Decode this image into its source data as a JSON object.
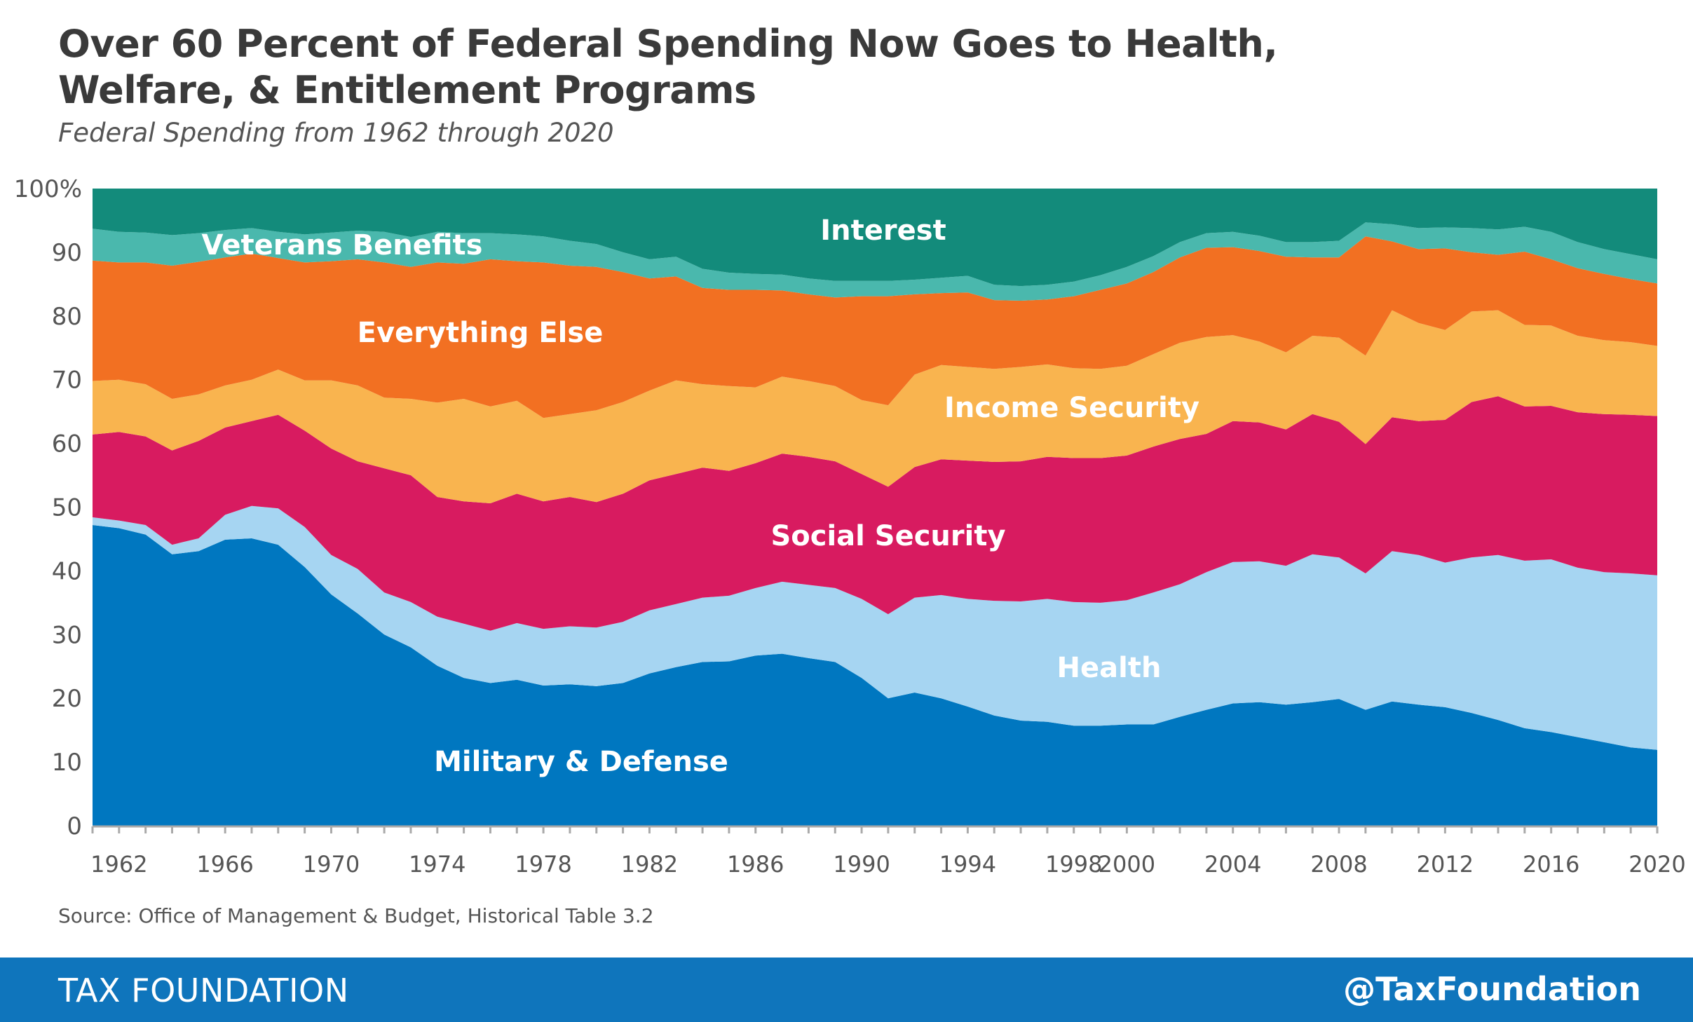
{
  "header": {
    "title_line1": "Over 60 Percent of Federal Spending Now Goes to Health,",
    "title_line2": "Welfare, & Entitlement  Programs",
    "subtitle": "Federal Spending from 1962 through 2020"
  },
  "source": "Source: Office of Management & Budget, Historical Table 3.2",
  "footer": {
    "brand": "TAX FOUNDATION",
    "handle": "@TaxFoundation",
    "color": "#0f75bc"
  },
  "chart_data": {
    "type": "area",
    "stacked": "percent",
    "ylim": [
      0,
      100
    ],
    "yticks": [
      "0",
      "10",
      "20",
      "30",
      "40",
      "50",
      "60",
      "70",
      "80",
      "90",
      "100%"
    ],
    "xticks": [
      "1962",
      "1966",
      "1970",
      "1974",
      "1978",
      "1982",
      "1986",
      "1990",
      "1994",
      "1998",
      "2000",
      "2004",
      "2008",
      "2012",
      "2016",
      "2020"
    ],
    "grid": false,
    "x": [
      1961,
      1962,
      1963,
      1964,
      1965,
      1966,
      1967,
      1968,
      1969,
      1970,
      1971,
      1972,
      1973,
      1974,
      1975,
      1976,
      1977,
      1978,
      1979,
      1980,
      1981,
      1982,
      1983,
      1984,
      1985,
      1986,
      1987,
      1988,
      1989,
      1990,
      1991,
      1992,
      1993,
      1994,
      1995,
      1996,
      1997,
      1998,
      1999,
      2000,
      2001,
      2002,
      2003,
      2004,
      2005,
      2006,
      2007,
      2008,
      2009,
      2010,
      2011,
      2012,
      2013,
      2014,
      2015,
      2016,
      2017,
      2018,
      2019,
      2020
    ],
    "series": [
      {
        "name": "Military & Defense",
        "color": "#0077c0",
        "values": [
          47.2,
          46.7,
          45.7,
          42.6,
          43.1,
          44.9,
          45.1,
          44.1,
          40.6,
          36.3,
          33.3,
          30.0,
          28.0,
          25.1,
          23.2,
          22.4,
          22.9,
          22.0,
          22.2,
          21.9,
          22.4,
          23.9,
          24.9,
          25.7,
          25.8,
          26.7,
          27.0,
          26.3,
          25.7,
          23.2,
          20.0,
          20.9,
          20.0,
          18.7,
          17.3,
          16.5,
          16.3,
          15.7,
          15.7,
          15.9,
          15.9,
          17.1,
          18.2,
          19.2,
          19.4,
          19.0,
          19.4,
          19.9,
          18.2,
          19.5,
          19.0,
          18.6,
          17.7,
          16.6,
          15.3,
          14.7,
          13.9,
          13.1,
          12.3,
          11.9
        ]
      },
      {
        "name": "Health",
        "color": "#a6d5f2",
        "values": [
          1.2,
          1.2,
          1.5,
          1.5,
          2.0,
          3.9,
          5.1,
          5.7,
          6.3,
          6.2,
          7.0,
          6.6,
          7.1,
          7.7,
          8.5,
          8.2,
          8.9,
          8.9,
          9.1,
          9.2,
          9.6,
          9.9,
          9.9,
          10.1,
          10.3,
          10.6,
          11.3,
          11.5,
          11.6,
          12.4,
          13.2,
          14.9,
          16.2,
          16.9,
          18.0,
          18.7,
          19.3,
          19.4,
          19.3,
          19.5,
          20.7,
          20.8,
          21.6,
          22.2,
          22.1,
          21.8,
          23.2,
          22.2,
          21.4,
          23.6,
          23.5,
          22.7,
          24.4,
          25.9,
          26.3,
          27.1,
          26.6,
          26.7,
          27.3,
          27.4
        ]
      },
      {
        "name": "Social Security",
        "color": "#d81b60",
        "values": [
          13.0,
          13.9,
          13.9,
          14.8,
          15.3,
          13.7,
          13.3,
          14.7,
          15.1,
          16.7,
          16.9,
          19.5,
          19.9,
          18.8,
          19.2,
          20.0,
          20.3,
          20.0,
          20.3,
          19.7,
          20.1,
          20.4,
          20.4,
          20.4,
          19.6,
          19.6,
          20.1,
          20.1,
          19.9,
          19.6,
          20.0,
          20.5,
          21.3,
          21.7,
          21.8,
          22.0,
          22.3,
          22.6,
          22.7,
          22.7,
          22.9,
          22.8,
          21.7,
          22.1,
          21.8,
          21.4,
          22.0,
          21.3,
          20.3,
          21.0,
          21.0,
          22.4,
          24.4,
          24.9,
          24.2,
          24.1,
          24.4,
          24.8,
          24.9,
          25.0
        ]
      },
      {
        "name": "Income Security",
        "color": "#f9b44f",
        "values": [
          8.4,
          8.2,
          8.2,
          8.1,
          7.3,
          6.6,
          6.5,
          7.1,
          7.9,
          10.7,
          11.9,
          11.1,
          12.0,
          14.8,
          16.1,
          15.2,
          14.6,
          13.1,
          13.0,
          14.4,
          14.4,
          14.1,
          14.7,
          13.1,
          13.3,
          11.9,
          12.1,
          11.9,
          11.8,
          11.6,
          12.8,
          14.5,
          14.8,
          14.7,
          14.6,
          14.8,
          14.5,
          14.1,
          14.0,
          14.1,
          14.5,
          15.1,
          15.2,
          13.5,
          12.7,
          12.1,
          12.3,
          13.2,
          13.9,
          16.8,
          15.4,
          14.1,
          14.2,
          13.5,
          12.8,
          12.6,
          12.0,
          11.6,
          11.4,
          11.0
        ]
      },
      {
        "name": "Everything Else",
        "color": "#f27022",
        "values": [
          18.9,
          18.4,
          19.1,
          20.9,
          20.8,
          20.1,
          19.8,
          17.5,
          18.5,
          18.7,
          19.8,
          21.2,
          20.7,
          22.0,
          21.2,
          23.1,
          21.9,
          24.4,
          23.3,
          22.5,
          20.4,
          17.6,
          16.3,
          15.1,
          15.1,
          15.3,
          13.5,
          13.6,
          13.9,
          16.3,
          17.1,
          12.6,
          11.3,
          11.7,
          10.8,
          10.4,
          10.2,
          11.3,
          12.4,
          12.9,
          12.9,
          13.4,
          14.0,
          13.8,
          14.2,
          15.0,
          12.3,
          12.6,
          18.7,
          10.8,
          11.6,
          12.8,
          9.3,
          8.7,
          11.5,
          10.4,
          10.6,
          10.4,
          9.9,
          9.8
        ]
      },
      {
        "name": "Veterans Benefits",
        "color": "#4ab8ad",
        "values": [
          5.0,
          4.8,
          4.7,
          4.8,
          4.5,
          4.3,
          4.0,
          4.1,
          4.4,
          4.5,
          4.5,
          4.8,
          4.7,
          4.8,
          4.8,
          4.1,
          4.2,
          4.1,
          3.9,
          3.6,
          3.1,
          3.0,
          3.1,
          3.0,
          2.7,
          2.5,
          2.5,
          2.5,
          2.6,
          2.4,
          2.4,
          2.3,
          2.4,
          2.6,
          2.4,
          2.3,
          2.3,
          2.3,
          2.3,
          2.6,
          2.5,
          2.4,
          2.3,
          2.4,
          2.4,
          2.3,
          2.4,
          2.6,
          2.2,
          2.7,
          3.3,
          3.3,
          3.8,
          4.0,
          3.9,
          4.3,
          4.1,
          3.9,
          3.9,
          3.8
        ]
      },
      {
        "name": "Interest",
        "color": "#138b7b",
        "values": [
          6.3,
          6.8,
          6.9,
          7.3,
          7.0,
          6.5,
          6.2,
          6.8,
          7.2,
          6.9,
          6.6,
          6.8,
          7.6,
          6.8,
          7.0,
          7.0,
          7.2,
          7.5,
          8.2,
          8.7,
          10.0,
          11.1,
          10.7,
          12.6,
          13.2,
          13.4,
          13.5,
          14.1,
          14.5,
          14.5,
          14.5,
          14.3,
          14.0,
          13.7,
          15.1,
          15.3,
          15.1,
          14.6,
          13.6,
          12.3,
          10.6,
          8.4,
          7.0,
          6.8,
          7.4,
          8.4,
          8.4,
          8.2,
          5.3,
          5.6,
          6.2,
          6.1,
          6.2,
          6.4,
          6.0,
          6.8,
          8.4,
          9.5,
          10.3,
          11.1
        ]
      }
    ]
  }
}
